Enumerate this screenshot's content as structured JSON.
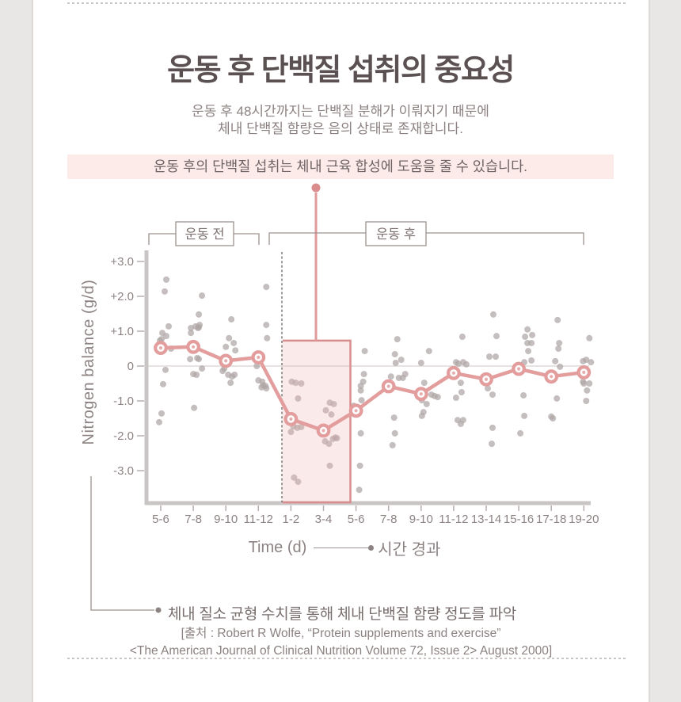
{
  "page": {
    "title": "운동 후 단백질 섭취의 중요성",
    "subtitle_line1": "운동 후 48시간까지는 단백질 분해가 이뤄지기 때문에",
    "subtitle_line2": "체내 단백질 함량은 음의 상태로 존재합니다.",
    "highlight": "운동 후의 단백질 섭취는 체내 근육 합성에 도움을 줄 수 있습니다."
  },
  "chart_data": {
    "type": "scatter",
    "ylabel": "Nitrogen balance (g/d)",
    "xlabel": "Time (d)",
    "xlabel_annotation": "시간 경과",
    "group_before_label": "운동 전",
    "group_after_label": "운동 후",
    "categories": [
      "5-6",
      "7-8",
      "9-10",
      "11-12",
      "1-2",
      "3-4",
      "5-6",
      "7-8",
      "9-10",
      "11-12",
      "13-14",
      "15-16",
      "17-18",
      "19-20"
    ],
    "yticks": [
      {
        "label": "+3.0",
        "value": 3.0
      },
      {
        "label": "+2.0",
        "value": 2.0
      },
      {
        "label": "+1.0",
        "value": 1.0
      },
      {
        "label": "0",
        "value": 0
      },
      {
        "label": "-1.0",
        "value": -1.0
      },
      {
        "label": "-2.0",
        "value": -2.0
      },
      {
        "label": "-3.0",
        "value": -3.0
      }
    ],
    "ylim": [
      -3.7,
      3.4
    ],
    "grid": "zero-line-only",
    "legend": "none",
    "series": [
      {
        "name": "mean nitrogen balance",
        "type": "line",
        "values": [
          0.52,
          0.55,
          0.15,
          0.25,
          -1.52,
          -1.85,
          -1.28,
          -0.58,
          -0.8,
          -0.2,
          -0.38,
          -0.08,
          -0.3,
          -0.18
        ]
      },
      {
        "name": "individual measurements",
        "type": "scatter",
        "point_format": "[category_index, x_jitter_px, value]",
        "points": [
          [
            0,
            7,
            2.48
          ],
          [
            0,
            5,
            2.14
          ],
          [
            0,
            10,
            1.14
          ],
          [
            0,
            2,
            0.95
          ],
          [
            0,
            7,
            0.86
          ],
          [
            0,
            1,
            0.77
          ],
          [
            0,
            -1,
            0.73
          ],
          [
            0,
            13,
            0.5
          ],
          [
            0,
            6,
            -0.11
          ],
          [
            0,
            3,
            -0.52
          ],
          [
            0,
            1,
            -1.36
          ],
          [
            0,
            -2,
            -1.61
          ],
          [
            1,
            11,
            2.02
          ],
          [
            1,
            7,
            1.48
          ],
          [
            1,
            8,
            1.18
          ],
          [
            1,
            3,
            1.14
          ],
          [
            1,
            7,
            1.11
          ],
          [
            1,
            -3,
            1.09
          ],
          [
            1,
            6,
            1.09
          ],
          [
            1,
            -3,
            0.95
          ],
          [
            1,
            5,
            0.23
          ],
          [
            1,
            -4,
            0.2
          ],
          [
            1,
            7,
            0.2
          ],
          [
            1,
            0,
            -0.23
          ],
          [
            1,
            4,
            -0.25
          ],
          [
            1,
            11,
            -0.07
          ],
          [
            1,
            1,
            -1.2
          ],
          [
            2,
            7,
            1.34
          ],
          [
            2,
            4,
            0.8
          ],
          [
            2,
            10,
            0.66
          ],
          [
            2,
            0,
            0.55
          ],
          [
            2,
            12,
            0.45
          ],
          [
            2,
            -2,
            -0.07
          ],
          [
            2,
            -4,
            -0.14
          ],
          [
            2,
            3,
            -0.25
          ],
          [
            2,
            11,
            -0.25
          ],
          [
            2,
            8,
            -0.3
          ],
          [
            2,
            6,
            -0.48
          ],
          [
            3,
            10,
            2.27
          ],
          [
            3,
            10,
            1.18
          ],
          [
            3,
            11,
            0.8
          ],
          [
            3,
            -2,
            0.0
          ],
          [
            3,
            0,
            -0.41
          ],
          [
            3,
            5,
            -0.45
          ],
          [
            3,
            6,
            -0.55
          ],
          [
            3,
            9,
            -0.57
          ],
          [
            3,
            4,
            -0.61
          ],
          [
            3,
            10,
            -0.64
          ],
          [
            4,
            1,
            -0.45
          ],
          [
            4,
            6,
            -0.48
          ],
          [
            4,
            13,
            -0.5
          ],
          [
            4,
            9,
            -0.93
          ],
          [
            4,
            1,
            -1.48
          ],
          [
            4,
            -1,
            -1.61
          ],
          [
            4,
            3,
            -1.73
          ],
          [
            4,
            13,
            -1.75
          ],
          [
            4,
            8,
            -1.77
          ],
          [
            4,
            0,
            -1.89
          ],
          [
            4,
            4,
            -3.2
          ],
          [
            4,
            9,
            -3.32
          ],
          [
            5,
            8,
            -1.05
          ],
          [
            5,
            13,
            -1.09
          ],
          [
            5,
            3,
            -1.27
          ],
          [
            5,
            10,
            -1.39
          ],
          [
            5,
            15,
            -2.05
          ],
          [
            5,
            17,
            -2.07
          ],
          [
            5,
            12,
            -2.09
          ],
          [
            5,
            2,
            -2.16
          ],
          [
            5,
            7,
            -2.23
          ],
          [
            5,
            8,
            -2.86
          ],
          [
            6,
            11,
            0.43
          ],
          [
            6,
            10,
            -0.23
          ],
          [
            6,
            9,
            -0.45
          ],
          [
            6,
            6,
            -0.57
          ],
          [
            6,
            6,
            -0.7
          ],
          [
            6,
            7,
            -0.98
          ],
          [
            6,
            -3,
            -1.14
          ],
          [
            6,
            6,
            -1.93
          ],
          [
            6,
            5,
            -2.86
          ],
          [
            6,
            4,
            -3.55
          ],
          [
            7,
            11,
            0.77
          ],
          [
            7,
            8,
            0.34
          ],
          [
            7,
            16,
            0.18
          ],
          [
            7,
            9,
            0.09
          ],
          [
            7,
            21,
            -0.23
          ],
          [
            7,
            3,
            -0.3
          ],
          [
            7,
            13,
            -0.34
          ],
          [
            7,
            18,
            -0.34
          ],
          [
            7,
            7,
            -1.48
          ],
          [
            7,
            8,
            -1.93
          ],
          [
            7,
            5,
            -2.27
          ],
          [
            8,
            10,
            0.43
          ],
          [
            8,
            0,
            0.09
          ],
          [
            8,
            4,
            -0.48
          ],
          [
            8,
            13,
            -0.82
          ],
          [
            8,
            17,
            -0.86
          ],
          [
            8,
            21,
            -0.89
          ],
          [
            8,
            1,
            -0.98
          ],
          [
            8,
            7,
            -1.09
          ],
          [
            8,
            3,
            -1.32
          ],
          [
            8,
            1,
            -1.43
          ],
          [
            9,
            11,
            0.84
          ],
          [
            9,
            3,
            0.11
          ],
          [
            9,
            12,
            0.11
          ],
          [
            9,
            6,
            0.07
          ],
          [
            9,
            16,
            0.05
          ],
          [
            9,
            9,
            -0.48
          ],
          [
            9,
            10,
            -0.75
          ],
          [
            9,
            3,
            -0.91
          ],
          [
            9,
            5,
            -1.55
          ],
          [
            9,
            12,
            -1.55
          ],
          [
            9,
            9,
            -1.66
          ],
          [
            10,
            9,
            1.48
          ],
          [
            10,
            13,
            0.86
          ],
          [
            10,
            4,
            0.27
          ],
          [
            10,
            12,
            0.27
          ],
          [
            10,
            2,
            -0.64
          ],
          [
            10,
            8,
            -0.82
          ],
          [
            10,
            8,
            -1.77
          ],
          [
            10,
            7,
            -2.23
          ],
          [
            11,
            11,
            1.05
          ],
          [
            11,
            17,
            0.89
          ],
          [
            11,
            8,
            0.84
          ],
          [
            11,
            11,
            0.66
          ],
          [
            11,
            16,
            0.66
          ],
          [
            11,
            12,
            0.43
          ],
          [
            11,
            16,
            0.16
          ],
          [
            11,
            7,
            0.11
          ],
          [
            11,
            6,
            -0.84
          ],
          [
            11,
            7,
            -1.43
          ],
          [
            11,
            2,
            -1.93
          ],
          [
            12,
            8,
            1.32
          ],
          [
            12,
            10,
            0.66
          ],
          [
            12,
            9,
            0.5
          ],
          [
            12,
            5,
            0.14
          ],
          [
            12,
            11,
            -0.02
          ],
          [
            12,
            7,
            -0.93
          ],
          [
            12,
            0,
            -1.45
          ],
          [
            12,
            2,
            -1.5
          ],
          [
            13,
            7,
            0.8
          ],
          [
            13,
            3,
            0.18
          ],
          [
            13,
            -1,
            0.14
          ],
          [
            13,
            9,
            0.11
          ],
          [
            13,
            -1,
            -0.45
          ],
          [
            13,
            0,
            -0.5
          ],
          [
            13,
            7,
            -0.5
          ],
          [
            13,
            4,
            -0.7
          ],
          [
            13,
            3,
            -1.0
          ]
        ]
      }
    ],
    "highlight_region": {
      "start_category": "1-2",
      "end_category": "5-6",
      "top_value": 0.73,
      "bottom": "x-axis"
    },
    "divider_between": [
      "11-12",
      "1-2"
    ]
  },
  "footer": {
    "bullet": "체내 질소 균형 수치를 통해 체내 단백질 함량 정도를 파악",
    "source_line1": "[출처 : Robert R Wolfe, “Protein supplements and exercise”",
    "source_line2": "<The American Journal of Clinical Nutrition Volume 72, Issue 2> August 2000]"
  },
  "colors": {
    "accent_pink": "#e39d9d",
    "callout_dot": "#db8d8e",
    "scatter_gray": "#aea5a5",
    "title_text": "#5b5152",
    "muted_text": "#8b8180",
    "highlight_bg": "#fcebe9",
    "box_fill": "#f7e2e2",
    "box_border": "#d98e8e",
    "axis_gray": "#c9c5c4"
  }
}
